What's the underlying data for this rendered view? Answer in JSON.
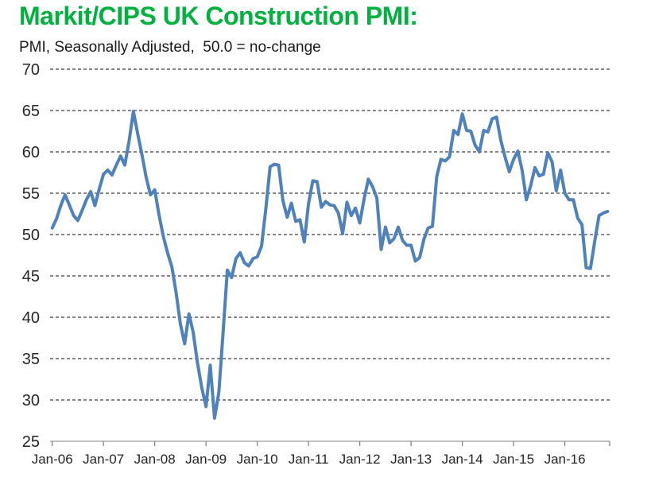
{
  "chart_data": {
    "type": "line",
    "title": "Markit/CIPS UK Construction PMI:",
    "subtitle": "PMI, Seasonally Adjusted,  50.0 = no-change",
    "xlabel": "",
    "ylabel": "",
    "legend": "none",
    "grid": "horizontal-dashed",
    "ylim": [
      25,
      70
    ],
    "y_ticks": [
      70,
      65,
      60,
      55,
      50,
      45,
      40,
      35,
      30,
      25
    ],
    "x_tick_labels": [
      "Jan-06",
      "Jan-07",
      "Jan-08",
      "Jan-09",
      "Jan-10",
      "Jan-11",
      "Jan-12",
      "Jan-13",
      "Jan-14",
      "Jan-15",
      "Jan-16"
    ],
    "x_start": "Jan-06",
    "x_end": "Nov-16",
    "x_frequency": "monthly",
    "series": [
      {
        "name": "UK Construction PMI",
        "values": [
          50.8,
          51.9,
          53.5,
          54.8,
          53.6,
          52.3,
          51.7,
          52.9,
          54.2,
          55.2,
          53.5,
          55.5,
          57.3,
          57.8,
          57.2,
          58.4,
          59.5,
          58.4,
          61.3,
          64.9,
          62.2,
          59.7,
          56.9,
          54.8,
          55.4,
          52.4,
          49.8,
          47.8,
          46.1,
          43.0,
          39.2,
          36.8,
          40.4,
          38.2,
          34.5,
          31.5,
          29.2,
          34.2,
          27.8,
          30.9,
          38.1,
          45.7,
          44.8,
          47.1,
          47.8,
          46.6,
          46.2,
          47.1,
          47.3,
          48.6,
          53.1,
          58.2,
          58.5,
          58.4,
          54.1,
          52.1,
          53.8,
          51.6,
          51.8,
          49.1,
          53.7,
          56.5,
          56.4,
          53.3,
          54.0,
          53.6,
          53.5,
          52.6,
          50.1,
          53.9,
          52.3,
          53.2,
          51.4,
          54.3,
          56.7,
          55.8,
          54.4,
          48.2,
          50.9,
          49.0,
          49.5,
          50.9,
          49.3,
          48.7,
          48.7,
          46.8,
          47.2,
          49.4,
          50.8,
          51.0,
          57.0,
          59.1,
          58.9,
          59.4,
          62.6,
          62.1,
          64.6,
          62.6,
          62.5,
          60.8,
          60.0,
          62.6,
          62.4,
          64.0,
          64.2,
          61.4,
          59.4,
          57.6,
          59.1,
          60.1,
          57.8,
          54.2,
          55.9,
          58.1,
          57.1,
          57.3,
          59.9,
          58.8,
          55.3,
          57.8,
          55.0,
          54.2,
          54.2,
          52.0,
          51.2,
          46.0,
          45.9,
          49.2,
          52.3,
          52.6,
          52.8
        ]
      }
    ],
    "colors": {
      "title": "#00B140",
      "line": "#4F81BD",
      "gridline": "#3f3f3f",
      "axis": "#9b9b9b",
      "tick": "#7f7f7f",
      "label_text": "#262626"
    }
  }
}
